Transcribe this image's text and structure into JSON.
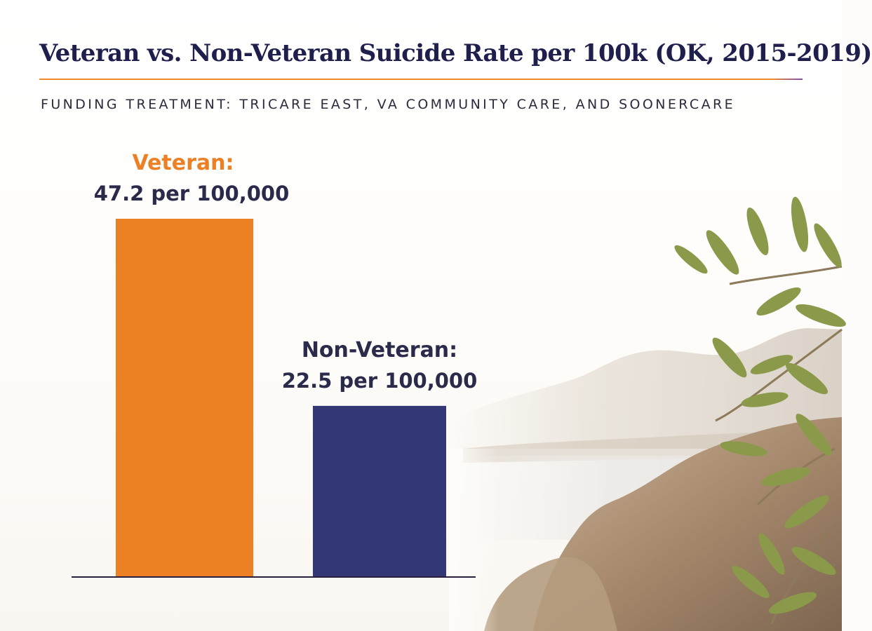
{
  "header": {
    "title": "Veteran vs. Non-Veteran Suicide Rate per 100k (OK, 2015-2019)",
    "subtitle": "FUNDING TREATMENT: TRICARE EAST, VA COMMUNITY CARE, AND SOONERCARE"
  },
  "background": {
    "icon": "olive-branch-icon",
    "scene": "landscape-rocks-water"
  },
  "colors": {
    "accent": "#ef8a2c",
    "veteran": "#ec8025",
    "non_veteran": "#333775",
    "title": "#1f1f4d"
  },
  "chart_data": {
    "type": "bar",
    "title": "Veteran vs. Non-Veteran Suicide Rate per 100k (OK, 2015-2019)",
    "subtitle": "FUNDING TREATMENT: TRICARE EAST, VA COMMUNITY CARE, AND SOONERCARE",
    "categories": [
      "Veteran",
      "Non-Veteran"
    ],
    "values": [
      47.2,
      22.5
    ],
    "data_labels": [
      {
        "category": "Veteran:",
        "value": "47.2 per 100,000"
      },
      {
        "category": "Non-Veteran:",
        "value": "22.5 per 100,000"
      }
    ],
    "colors": [
      "#ec8025",
      "#333775"
    ],
    "xlabel": "",
    "ylabel": "",
    "ylim": [
      0,
      47.2
    ],
    "grid": false,
    "legend": "none"
  }
}
